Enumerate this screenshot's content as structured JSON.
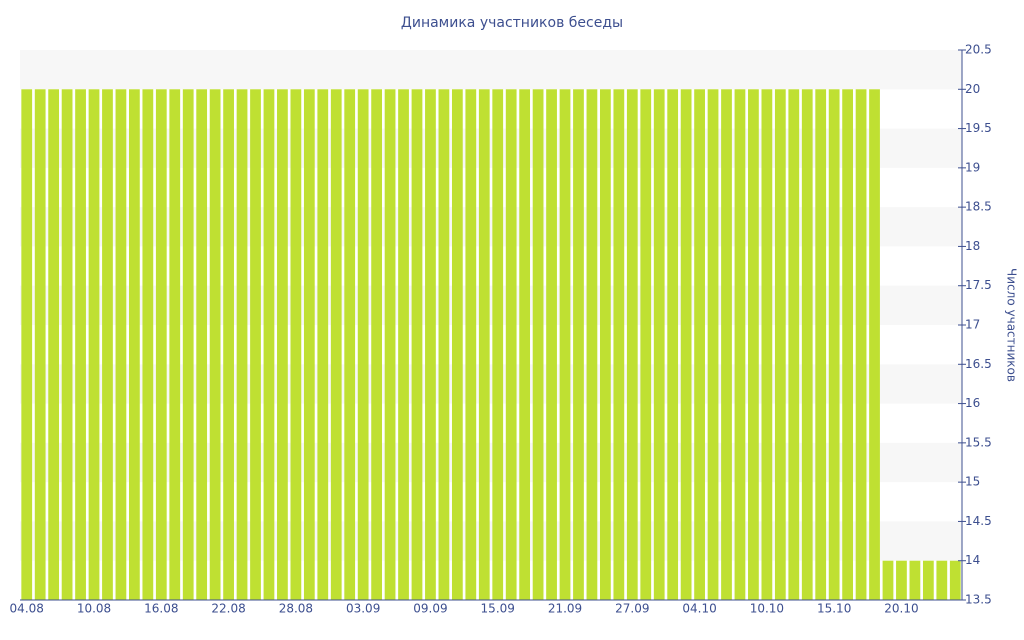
{
  "chart_data": {
    "type": "bar",
    "title": "Динамика участников беседы",
    "y_axis_label": "Число участников",
    "categories": [
      "04.08",
      null,
      null,
      null,
      null,
      "10.08",
      null,
      null,
      null,
      null,
      "16.08",
      null,
      null,
      null,
      null,
      "22.08",
      null,
      null,
      null,
      null,
      "28.08",
      null,
      null,
      null,
      null,
      "03.09",
      null,
      null,
      null,
      null,
      "09.09",
      null,
      null,
      null,
      null,
      "15.09",
      null,
      null,
      null,
      null,
      "21.09",
      null,
      null,
      null,
      null,
      "27.09",
      null,
      null,
      null,
      null,
      "04.10",
      null,
      null,
      null,
      null,
      "10.10",
      null,
      null,
      null,
      null,
      "15.10",
      null,
      null,
      null,
      null,
      "20.10",
      null,
      null,
      null,
      null
    ],
    "values": [
      20,
      20,
      20,
      20,
      20,
      20,
      20,
      20,
      20,
      20,
      20,
      20,
      20,
      20,
      20,
      20,
      20,
      20,
      20,
      20,
      20,
      20,
      20,
      20,
      20,
      20,
      20,
      20,
      20,
      20,
      20,
      20,
      20,
      20,
      20,
      20,
      20,
      20,
      20,
      20,
      20,
      20,
      20,
      20,
      20,
      20,
      20,
      20,
      20,
      20,
      20,
      20,
      20,
      20,
      20,
      20,
      20,
      20,
      20,
      20,
      20,
      20,
      20,
      20,
      14,
      14,
      14,
      14,
      14,
      14
    ],
    "color": "#bfe032",
    "ylim": [
      13.5,
      20.5
    ],
    "yticks": [
      13.5,
      14,
      14.5,
      15,
      15.5,
      16,
      16.5,
      17,
      17.5,
      18,
      18.5,
      19,
      19.5,
      20,
      20.5
    ],
    "y_axis_side": "right",
    "alternate_bands": true
  }
}
